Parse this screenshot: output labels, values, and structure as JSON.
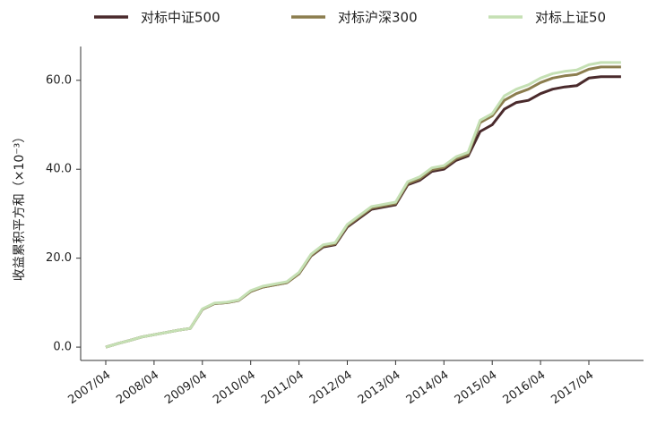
{
  "chart_data": {
    "type": "line",
    "y_label": "收益累积平方和（×10⁻³）",
    "x": [
      "2007/04",
      "2007/07",
      "2007/10",
      "2008/01",
      "2008/04",
      "2008/07",
      "2008/10",
      "2009/01",
      "2009/04",
      "2009/07",
      "2009/10",
      "2010/01",
      "2010/04",
      "2010/07",
      "2010/10",
      "2011/01",
      "2011/04",
      "2011/07",
      "2011/10",
      "2012/01",
      "2012/04",
      "2012/07",
      "2012/10",
      "2013/01",
      "2013/04",
      "2013/07",
      "2013/10",
      "2014/01",
      "2014/04",
      "2014/07",
      "2014/10",
      "2015/01",
      "2015/04",
      "2015/07",
      "2015/10",
      "2016/01",
      "2016/04",
      "2016/07",
      "2016/10",
      "2017/01",
      "2017/04",
      "2017/07",
      "2017/10",
      "2017/12"
    ],
    "series": [
      {
        "name": "对标中证500",
        "color": "#4a2a2c",
        "values": [
          0,
          0.8,
          1.5,
          2.3,
          2.8,
          3.3,
          3.8,
          4.2,
          8.5,
          9.8,
          10,
          10.5,
          12.5,
          13.5,
          14,
          14.5,
          16.5,
          20.5,
          22.5,
          23,
          27,
          29,
          31,
          31.5,
          32,
          36.5,
          37.5,
          39.5,
          40,
          42,
          43,
          48.5,
          50,
          53.5,
          55,
          55.5,
          57,
          58,
          58.5,
          58.8,
          60.5,
          60.8,
          60.8,
          60.8
        ]
      },
      {
        "name": "对标沪深300",
        "color": "#8b7d4e",
        "values": [
          0,
          0.8,
          1.5,
          2.3,
          2.8,
          3.3,
          3.8,
          4.2,
          8.5,
          9.8,
          10,
          10.5,
          12.5,
          13.5,
          14,
          14.5,
          16.5,
          20.6,
          22.7,
          23.2,
          27.3,
          29.3,
          31.3,
          31.8,
          32.3,
          36.8,
          37.9,
          39.9,
          40.4,
          42.4,
          43.4,
          50.5,
          52,
          55.5,
          57,
          58,
          59.5,
          60.5,
          61,
          61.3,
          62.5,
          63,
          63,
          63
        ]
      },
      {
        "name": "对标上证50",
        "color": "#c5e0b4",
        "values": [
          0,
          0.8,
          1.5,
          2.3,
          2.8,
          3.3,
          3.8,
          4.2,
          8.6,
          9.9,
          10.1,
          10.6,
          12.7,
          13.7,
          14.2,
          14.7,
          16.8,
          20.9,
          23,
          23.5,
          27.6,
          29.6,
          31.6,
          32.1,
          32.6,
          37.2,
          38.3,
          40.3,
          40.8,
          42.8,
          43.8,
          51,
          52.5,
          56.5,
          58,
          59,
          60.5,
          61.5,
          62,
          62.3,
          63.5,
          64,
          64,
          64
        ]
      }
    ],
    "xticks": [
      "2007/04",
      "2008/04",
      "2009/04",
      "2010/04",
      "2011/04",
      "2012/04",
      "2013/04",
      "2014/04",
      "2015/04",
      "2016/04",
      "2017/04"
    ],
    "ylim": [
      -3,
      67.6
    ],
    "yticks": [
      {
        "value": 0,
        "label": "0.0"
      },
      {
        "value": 20,
        "label": "20.0"
      },
      {
        "value": 40,
        "label": "40.0"
      },
      {
        "value": 60,
        "label": "60.0"
      }
    ],
    "legend": "top"
  }
}
